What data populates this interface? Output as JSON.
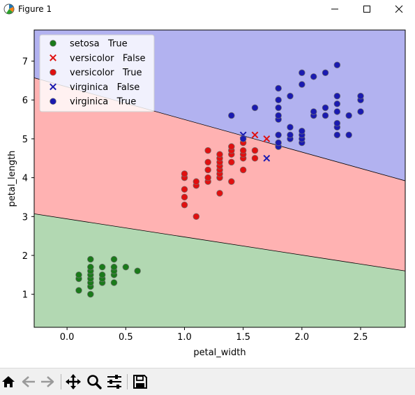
{
  "window": {
    "title": "Figure 1",
    "controls": [
      "minimize",
      "maximize",
      "close"
    ]
  },
  "toolbar": {
    "icons": [
      "home-icon",
      "back-arrow-icon",
      "forward-arrow-icon",
      "pan-icon",
      "zoom-icon",
      "configure-subplots-icon",
      "save-icon"
    ]
  },
  "colors": {
    "region_setosa": "#b2d8b2",
    "region_versicolor": "#ffb2b2",
    "region_virginica": "#b2b2f0",
    "setosa": "#1a7a1a",
    "versicolor": "#e01010",
    "virginica": "#1a1ab0"
  },
  "chart_data": {
    "type": "scatter",
    "xlabel": "petal_width",
    "ylabel": "petal_length",
    "xlim": [
      -0.28,
      2.88
    ],
    "ylim": [
      0.15,
      7.8
    ],
    "xticks": [
      0.0,
      0.5,
      1.0,
      1.5,
      2.0,
      2.5
    ],
    "xtick_labels": [
      "0.0",
      "0.5",
      "1.0",
      "1.5",
      "2.0",
      "2.5"
    ],
    "yticks": [
      1,
      2,
      3,
      4,
      5,
      6,
      7
    ],
    "ytick_labels": [
      "1",
      "2",
      "3",
      "4",
      "5",
      "6",
      "7"
    ],
    "grid": false,
    "legend_position": "top-left",
    "decision_boundaries": [
      {
        "between": [
          "setosa",
          "versicolor"
        ],
        "points": [
          [
            -0.28,
            3.07
          ],
          [
            2.88,
            1.6
          ]
        ]
      },
      {
        "between": [
          "versicolor",
          "virginica"
        ],
        "points": [
          [
            -0.28,
            6.57
          ],
          [
            2.88,
            3.92
          ]
        ]
      }
    ],
    "series": [
      {
        "name": "setosa   True",
        "species": "setosa",
        "correct": true,
        "marker": "circle",
        "points": [
          [
            0.1,
            1.1
          ],
          [
            0.1,
            1.4
          ],
          [
            0.1,
            1.5
          ],
          [
            0.2,
            1.0
          ],
          [
            0.2,
            1.2
          ],
          [
            0.2,
            1.3
          ],
          [
            0.2,
            1.4
          ],
          [
            0.2,
            1.5
          ],
          [
            0.2,
            1.6
          ],
          [
            0.2,
            1.7
          ],
          [
            0.2,
            1.9
          ],
          [
            0.3,
            1.3
          ],
          [
            0.3,
            1.4
          ],
          [
            0.3,
            1.5
          ],
          [
            0.3,
            1.7
          ],
          [
            0.4,
            1.3
          ],
          [
            0.4,
            1.5
          ],
          [
            0.4,
            1.6
          ],
          [
            0.4,
            1.7
          ],
          [
            0.4,
            1.9
          ],
          [
            0.5,
            1.7
          ],
          [
            0.6,
            1.6
          ]
        ]
      },
      {
        "name": "versicolor   False",
        "species": "versicolor",
        "correct": false,
        "marker": "x",
        "points": [
          [
            1.6,
            5.1
          ],
          [
            1.7,
            5.0
          ]
        ]
      },
      {
        "name": "versicolor   True",
        "species": "versicolor",
        "correct": true,
        "marker": "circle",
        "points": [
          [
            1.0,
            3.3
          ],
          [
            1.0,
            3.5
          ],
          [
            1.0,
            3.7
          ],
          [
            1.0,
            4.0
          ],
          [
            1.0,
            4.1
          ],
          [
            1.1,
            3.0
          ],
          [
            1.1,
            3.8
          ],
          [
            1.1,
            3.9
          ],
          [
            1.2,
            3.9
          ],
          [
            1.2,
            4.0
          ],
          [
            1.2,
            4.2
          ],
          [
            1.2,
            4.4
          ],
          [
            1.2,
            4.7
          ],
          [
            1.3,
            3.6
          ],
          [
            1.3,
            4.0
          ],
          [
            1.3,
            4.1
          ],
          [
            1.3,
            4.2
          ],
          [
            1.3,
            4.3
          ],
          [
            1.3,
            4.4
          ],
          [
            1.3,
            4.5
          ],
          [
            1.3,
            4.6
          ],
          [
            1.4,
            3.9
          ],
          [
            1.4,
            4.4
          ],
          [
            1.4,
            4.6
          ],
          [
            1.4,
            4.7
          ],
          [
            1.4,
            4.8
          ],
          [
            1.5,
            4.2
          ],
          [
            1.5,
            4.5
          ],
          [
            1.5,
            4.6
          ],
          [
            1.5,
            4.7
          ],
          [
            1.5,
            4.9
          ],
          [
            1.6,
            4.5
          ],
          [
            1.6,
            4.7
          ],
          [
            1.8,
            4.8
          ]
        ]
      },
      {
        "name": "virginica   False",
        "species": "virginica",
        "correct": false,
        "marker": "x",
        "points": [
          [
            1.5,
            5.1
          ],
          [
            1.7,
            4.5
          ]
        ]
      },
      {
        "name": "virginica   True",
        "species": "virginica",
        "correct": true,
        "marker": "circle",
        "points": [
          [
            1.4,
            5.6
          ],
          [
            1.5,
            5.0
          ],
          [
            1.6,
            5.8
          ],
          [
            1.8,
            4.8
          ],
          [
            1.8,
            4.9
          ],
          [
            1.8,
            5.1
          ],
          [
            1.8,
            5.5
          ],
          [
            1.8,
            5.6
          ],
          [
            1.8,
            5.8
          ],
          [
            1.8,
            6.0
          ],
          [
            1.8,
            6.3
          ],
          [
            1.9,
            5.0
          ],
          [
            1.9,
            5.1
          ],
          [
            1.9,
            5.3
          ],
          [
            1.9,
            6.1
          ],
          [
            2.0,
            4.9
          ],
          [
            2.0,
            5.0
          ],
          [
            2.0,
            5.1
          ],
          [
            2.0,
            5.2
          ],
          [
            2.0,
            6.4
          ],
          [
            2.0,
            6.7
          ],
          [
            2.1,
            5.6
          ],
          [
            2.1,
            5.7
          ],
          [
            2.1,
            6.6
          ],
          [
            2.2,
            5.6
          ],
          [
            2.2,
            5.8
          ],
          [
            2.2,
            6.7
          ],
          [
            2.3,
            5.1
          ],
          [
            2.3,
            5.3
          ],
          [
            2.3,
            5.4
          ],
          [
            2.3,
            5.7
          ],
          [
            2.3,
            5.9
          ],
          [
            2.3,
            6.1
          ],
          [
            2.3,
            6.9
          ],
          [
            2.4,
            5.1
          ],
          [
            2.4,
            5.6
          ],
          [
            2.5,
            5.7
          ],
          [
            2.5,
            6.0
          ],
          [
            2.5,
            6.1
          ]
        ]
      }
    ]
  }
}
